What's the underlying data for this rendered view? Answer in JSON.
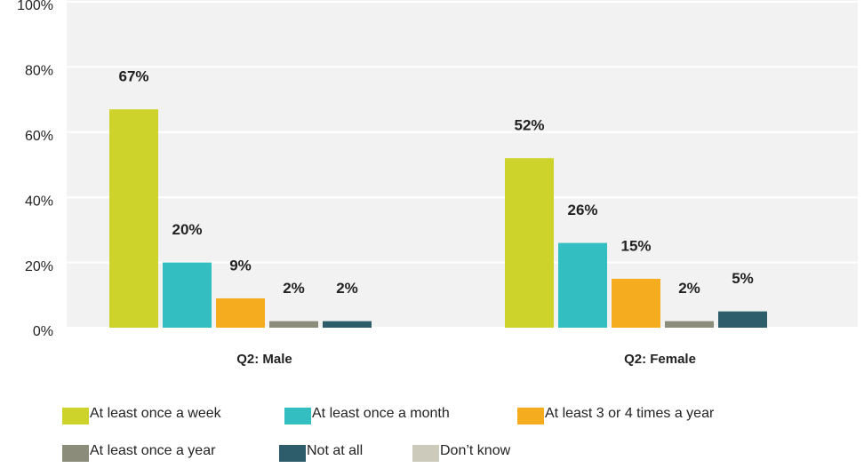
{
  "chart_data": {
    "type": "bar",
    "categories": [
      "Q2: Male",
      "Q2: Female"
    ],
    "series": [
      {
        "name": "At least once a week",
        "color": "#cdd32a",
        "values": [
          67,
          52
        ],
        "value_labels": [
          "67%",
          "52%"
        ]
      },
      {
        "name": "At least once a month",
        "color": "#33bfc1",
        "values": [
          20,
          26
        ],
        "value_labels": [
          "20%",
          "26%"
        ]
      },
      {
        "name": "At least 3 or 4 times a year",
        "color": "#f5ad1f",
        "values": [
          9,
          15
        ],
        "value_labels": [
          "9%",
          "15%"
        ]
      },
      {
        "name": "At least once a year",
        "color": "#8c8c7a",
        "values": [
          2,
          2
        ],
        "value_labels": [
          "2%",
          "2%"
        ]
      },
      {
        "name": "Not at all",
        "color": "#2d5d6b",
        "values": [
          2,
          5
        ],
        "value_labels": [
          "2%",
          "5%"
        ]
      },
      {
        "name": "Don’t know",
        "color": "#cccbbb",
        "values": [
          null,
          null
        ]
      }
    ],
    "ylim": [
      0,
      100
    ],
    "yticks": [
      {
        "value": 0,
        "label": "0%"
      },
      {
        "value": 20,
        "label": "20%"
      },
      {
        "value": 40,
        "label": "40%"
      },
      {
        "value": 60,
        "label": "60%"
      },
      {
        "value": 80,
        "label": "80%"
      },
      {
        "value": 100,
        "label": "100%"
      }
    ],
    "grid": true
  }
}
